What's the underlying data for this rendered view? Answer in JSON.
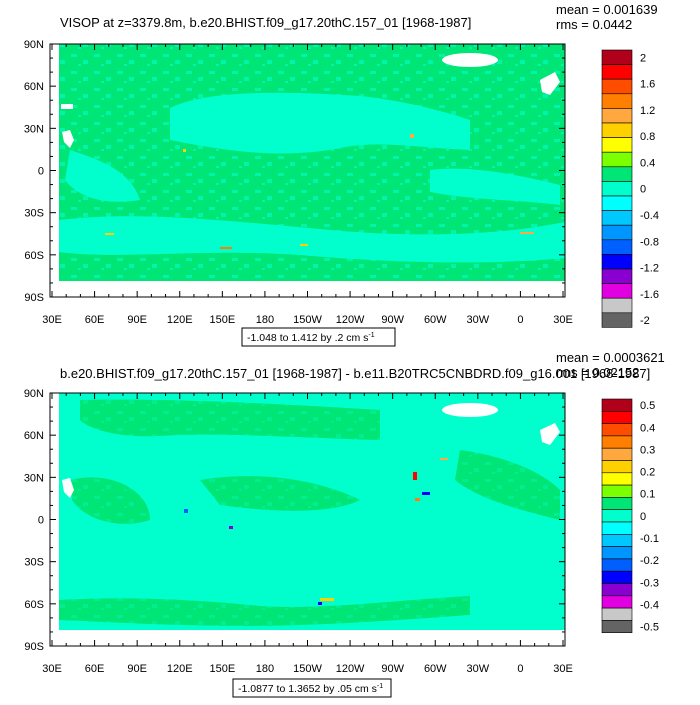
{
  "chart_data": [
    {
      "type": "heatmap",
      "title": "VISOP at z=3379.8m, b.e20.BHIST.f09_g17.20thC.157_01 [1968-1987]",
      "mean_text": "mean = 0.001639",
      "rms_text": "rms = 0.0442",
      "range_text": "-1.048 to 1.412 by .2 cm s",
      "range_sup": "-1",
      "y_ticks": [
        "90N",
        "60N",
        "30N",
        "0",
        "30S",
        "60S",
        "90S"
      ],
      "x_ticks": [
        "30E",
        "60E",
        "90E",
        "120E",
        "150E",
        "180",
        "150W",
        "120W",
        "90W",
        "60W",
        "30W",
        "0",
        "30E"
      ],
      "colorbar_labels": [
        "2",
        "1.6",
        "1.2",
        "0.8",
        "0.4",
        "0",
        "-0.4",
        "-0.8",
        "-1.2",
        "-1.6",
        "-2"
      ],
      "colorbar_colors": [
        "#b0001a",
        "#ff0000",
        "#ff4d00",
        "#ff8000",
        "#ffa840",
        "#ffd000",
        "#ffff00",
        "#7cff00",
        "#00e676",
        "#00ffcc",
        "#00ffff",
        "#00c8ff",
        "#0096ff",
        "#0060ff",
        "#0000ff",
        "#8a00d0",
        "#e000e0",
        "#c8c8c8",
        "#646464"
      ]
    },
    {
      "type": "heatmap",
      "title": "b.e20.BHIST.f09_g17.20thC.157_01 [1968-1987] - b.e11.B20TRC5CNBDRD.f09_g16.001 [1968-1987]",
      "mean_text": "mean = 0.0003621",
      "rms_text": "rms = 0.02152",
      "range_text": "-1.0877 to 1.3652 by .05 cm s",
      "range_sup": "-1",
      "y_ticks": [
        "90N",
        "60N",
        "30N",
        "0",
        "30S",
        "60S",
        "90S"
      ],
      "x_ticks": [
        "30E",
        "60E",
        "90E",
        "120E",
        "150E",
        "180",
        "150W",
        "120W",
        "90W",
        "60W",
        "30W",
        "0",
        "30E"
      ],
      "colorbar_labels": [
        "0.5",
        "0.4",
        "0.3",
        "0.2",
        "0.1",
        "0",
        "-0.1",
        "-0.2",
        "-0.3",
        "-0.4",
        "-0.5"
      ],
      "colorbar_colors": [
        "#b0001a",
        "#ff0000",
        "#ff4d00",
        "#ff8000",
        "#ffa840",
        "#ffd000",
        "#ffff00",
        "#7cff00",
        "#00e676",
        "#00ffcc",
        "#00ffff",
        "#00c8ff",
        "#0096ff",
        "#0060ff",
        "#0000ff",
        "#8a00d0",
        "#e000e0",
        "#c8c8c8",
        "#646464"
      ]
    }
  ],
  "colors": {
    "positive_base": "#00e676",
    "negative_base": "#00ffcc",
    "land": "#ffffff"
  }
}
